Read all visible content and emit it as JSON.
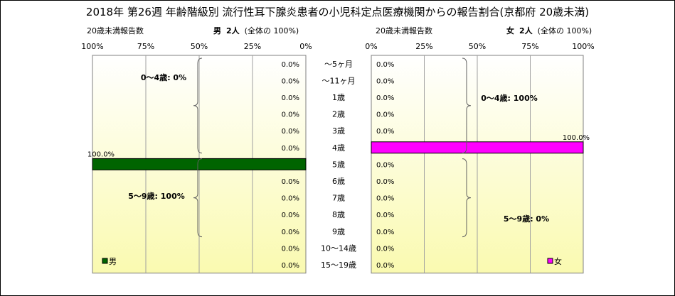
{
  "title": "2018年 第26週 年齢階級別 流行性耳下腺炎患者の小児科定点医療機関からの報告割合(京都府 20歳未満)",
  "male": {
    "header_label": "20歳未満報告数",
    "header_sex": "男",
    "header_count": "2人",
    "header_share": "(全体の 100%)",
    "legend": "男",
    "color": "#006400",
    "brace_labels": [
      "0～4歳: 0%",
      "5～9歳: 100%"
    ]
  },
  "female": {
    "header_label": "20歳未満報告数",
    "header_sex": "女",
    "header_count": "2人",
    "header_share": "(全体の 100%)",
    "legend": "女",
    "color": "#ff00ff",
    "brace_labels": [
      "0～4歳: 100%",
      "5～9歳: 0%"
    ]
  },
  "chart_data": {
    "type": "bar",
    "orientation": "horizontal",
    "title": "2018年 第26週 年齢階級別 流行性耳下腺炎患者の小児科定点医療機関からの報告割合(京都府 20歳未満)",
    "categories": [
      "～5ヶ月",
      "～11ヶ月",
      "1歳",
      "2歳",
      "3歳",
      "4歳",
      "5歳",
      "6歳",
      "7歳",
      "8歳",
      "9歳",
      "10～14歳",
      "15～19歳"
    ],
    "xlim": [
      0,
      100
    ],
    "x_ticks": [
      "0%",
      "25%",
      "50%",
      "75%",
      "100%"
    ],
    "grid": true,
    "series": [
      {
        "name": "男",
        "values": [
          0,
          0,
          0,
          0,
          0,
          0,
          100,
          0,
          0,
          0,
          0,
          0,
          0
        ]
      },
      {
        "name": "女",
        "values": [
          0,
          0,
          0,
          0,
          0,
          100,
          0,
          0,
          0,
          0,
          0,
          0,
          0
        ]
      }
    ]
  }
}
